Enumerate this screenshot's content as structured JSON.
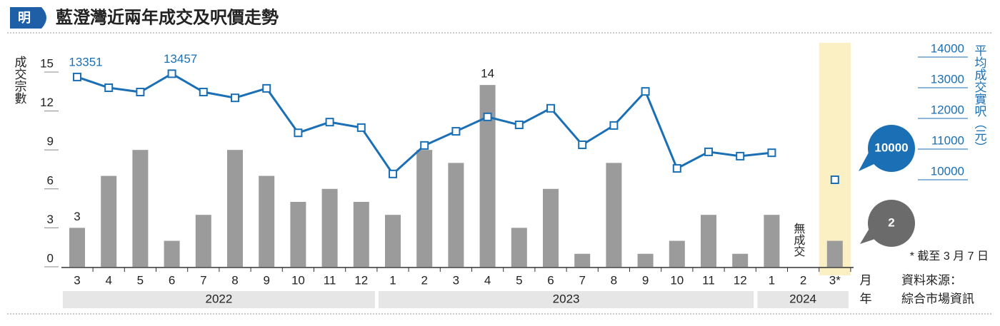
{
  "chart_data": {
    "type": "bar",
    "title": "藍澄灣近兩年成交及呎價走勢",
    "logo": "明",
    "y_label": "成交宗數",
    "y2_label": "平均成交實呎（元）",
    "categories": [
      "3",
      "4",
      "5",
      "6",
      "7",
      "8",
      "9",
      "10",
      "11",
      "12",
      "1",
      "2",
      "3",
      "4",
      "5",
      "6",
      "7",
      "8",
      "9",
      "10",
      "11",
      "12",
      "1",
      "2",
      "3*"
    ],
    "groups": [
      {
        "label": "2022",
        "count": 10
      },
      {
        "label": "2023",
        "count": 12
      },
      {
        "label": "2024",
        "count": 3
      }
    ],
    "x_unit_month": "月",
    "x_unit_year": "年",
    "highlight_category": "3*",
    "series": [
      {
        "name": "成交宗數",
        "type": "bar",
        "color": "#9b9b9b",
        "labeled": [
          0,
          13
        ],
        "values": [
          3,
          7,
          9,
          2,
          4,
          9,
          7,
          5,
          6,
          5,
          4,
          9,
          8,
          14,
          3,
          6,
          1,
          8,
          1,
          2,
          4,
          1,
          4,
          null,
          2
        ]
      },
      {
        "name": "平均成交實呎",
        "type": "line",
        "axis": "y2",
        "color": "#1a6fb5",
        "labeled": [
          0,
          3
        ],
        "values": [
          13351,
          13000,
          12860,
          13457,
          12860,
          12670,
          12980,
          11530,
          11880,
          11700,
          10190,
          11120,
          11580,
          12050,
          11790,
          12330,
          11140,
          11770,
          12880,
          10370,
          10910,
          10770,
          10880,
          null,
          10000
        ]
      }
    ],
    "no_trade_label": "無成交",
    "ylim": [
      0,
      17.25
    ],
    "yticks": [
      0,
      3,
      6,
      9,
      12,
      15
    ],
    "y2lim": [
      7163,
      14465
    ],
    "y2ticks": [
      10000,
      11000,
      12000,
      13000,
      14000
    ],
    "footnote": "* 截至 3 月 7 日",
    "source": [
      "資料來源：",
      "綜合市場資訊"
    ]
  }
}
